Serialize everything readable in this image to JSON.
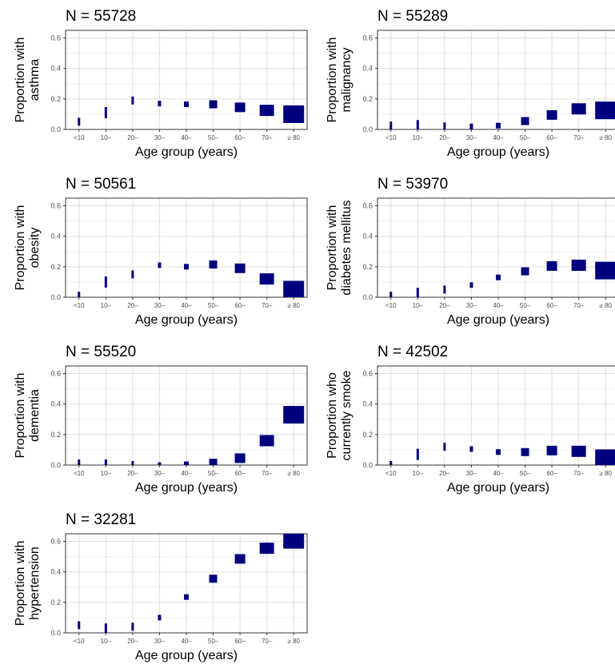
{
  "chart_data": [
    {
      "type": "scatter",
      "title": "N = 55728",
      "ylabel": "Proportion with\nasthma",
      "xlabel": "Age group (years)",
      "categories": [
        "<10",
        "10–",
        "20–",
        "30–",
        "40–",
        "50–",
        "60–",
        "70–",
        "≥ 80"
      ],
      "values": [
        0.05,
        0.11,
        0.19,
        0.17,
        0.165,
        0.165,
        0.145,
        0.125,
        0.1
      ],
      "ylim": [
        0,
        0.65
      ],
      "yticks": [
        "0.0",
        "0.2",
        "0.4",
        "0.6"
      ],
      "grid": true,
      "marker_color": "#00007F"
    },
    {
      "type": "scatter",
      "title": "N = 55289",
      "ylabel": "Proportion with\nmalignancy",
      "xlabel": "Age group (years)",
      "categories": [
        "<10",
        "10–",
        "20–",
        "30–",
        "40–",
        "50–",
        "60–",
        "70–",
        "≥ 80"
      ],
      "values": [
        0.025,
        0.025,
        0.02,
        0.02,
        0.025,
        0.055,
        0.095,
        0.135,
        0.125
      ],
      "ylim": [
        0,
        0.65
      ],
      "yticks": [
        "0.0",
        "0.2",
        "0.4",
        "0.6"
      ],
      "grid": true,
      "marker_color": "#00007F"
    },
    {
      "type": "scatter",
      "title": "N = 50561",
      "ylabel": "Proportion with\nobesity",
      "xlabel": "Age group (years)",
      "categories": [
        "<10",
        "10–",
        "20–",
        "30–",
        "40–",
        "50–",
        "60–",
        "70–",
        "≥ 80"
      ],
      "values": [
        0.01,
        0.1,
        0.15,
        0.21,
        0.2,
        0.215,
        0.19,
        0.12,
        0.05
      ],
      "ylim": [
        0,
        0.65
      ],
      "yticks": [
        "0.0",
        "0.2",
        "0.4",
        "0.6"
      ],
      "grid": true,
      "marker_color": "#00007F"
    },
    {
      "type": "scatter",
      "title": "N = 53970",
      "ylabel": "Proportion with\ndiabetes mellitus",
      "xlabel": "Age group (years)",
      "categories": [
        "<10",
        "10–",
        "20–",
        "30–",
        "40–",
        "50–",
        "60–",
        "70–",
        "≥ 80"
      ],
      "values": [
        0.01,
        0.025,
        0.05,
        0.08,
        0.13,
        0.17,
        0.205,
        0.21,
        0.175
      ],
      "ylim": [
        0,
        0.65
      ],
      "yticks": [
        "0.0",
        "0.2",
        "0.4",
        "0.6"
      ],
      "grid": true,
      "marker_color": "#00007F"
    },
    {
      "type": "scatter",
      "title": "N = 55520",
      "ylabel": "Proportion with\ndementia",
      "xlabel": "Age group (years)",
      "categories": [
        "<10",
        "10–",
        "20–",
        "30–",
        "40–",
        "50–",
        "60–",
        "70–",
        "≥ 80"
      ],
      "values": [
        0.01,
        0.0,
        0.0,
        0.0,
        0.005,
        0.015,
        0.045,
        0.16,
        0.33
      ],
      "ylim": [
        0,
        0.65
      ],
      "yticks": [
        "0.0",
        "0.2",
        "0.4",
        "0.6"
      ],
      "grid": true,
      "marker_color": "#00007F"
    },
    {
      "type": "scatter",
      "title": "N = 42502",
      "ylabel": "Proportion who\ncurrently smoke",
      "xlabel": "Age group (years)",
      "categories": [
        "<10",
        "10–",
        "20–",
        "30–",
        "40–",
        "50–",
        "60–",
        "70–",
        "≥ 80"
      ],
      "values": [
        0.0,
        0.07,
        0.12,
        0.105,
        0.085,
        0.085,
        0.095,
        0.09,
        0.045
      ],
      "ylim": [
        0,
        0.65
      ],
      "yticks": [
        "0.0",
        "0.2",
        "0.4",
        "0.6"
      ],
      "grid": true,
      "marker_color": "#00007F"
    },
    {
      "type": "scatter",
      "title": "N = 32281",
      "ylabel": "Proportion with\nhypertension",
      "xlabel": "Age group (years)",
      "categories": [
        "<10",
        "10–",
        "20–",
        "30–",
        "40–",
        "50–",
        "60–",
        "70–",
        "≥ 80"
      ],
      "values": [
        0.05,
        0.025,
        0.04,
        0.1,
        0.235,
        0.355,
        0.485,
        0.555,
        0.61
      ],
      "ylim": [
        0,
        0.65
      ],
      "yticks": [
        "0.0",
        "0.2",
        "0.4",
        "0.6"
      ],
      "grid": true,
      "marker_color": "#00007F"
    }
  ]
}
